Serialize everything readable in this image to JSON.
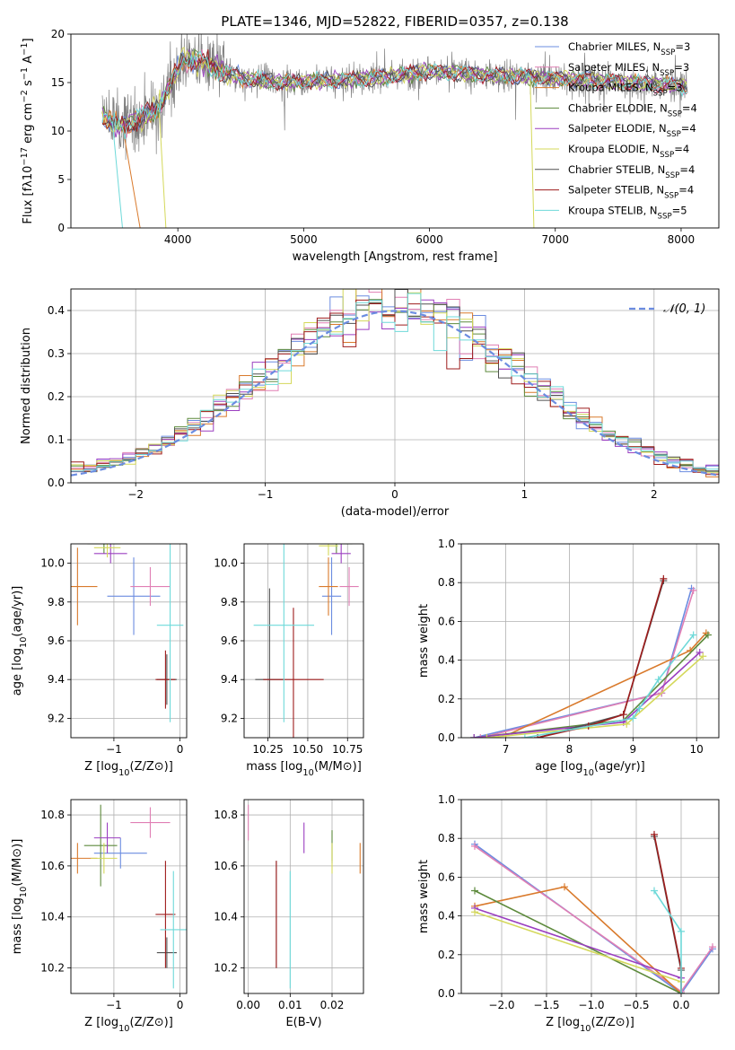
{
  "figure": {
    "title": "PLATE=1346, MJD=52822, FIBERID=0357, z=0.138"
  },
  "chart_data": [
    {
      "id": "spectrum",
      "type": "line",
      "xlabel": "wavelength [Angstrom, rest frame]",
      "ylabel": "Flux [fλ10⁻¹⁷ erg cm⁻² s⁻¹ A⁻¹]",
      "xlim": [
        3150,
        8300
      ],
      "ylim": [
        0,
        20
      ],
      "xticks": [
        4000,
        5000,
        6000,
        7000,
        8000
      ],
      "yticks": [
        0,
        5,
        10,
        15,
        20
      ],
      "grid": false,
      "legend_position": "top-right",
      "data_series": {
        "name": "",
        "color": "#808080",
        "x_range": [
          3400,
          8050
        ]
      },
      "series": [
        {
          "name": "Chabrier MILES, Nₛₛₚ=3",
          "color": "#6b8ce0"
        },
        {
          "name": "Salpeter MILES, Nₛₛₚ=3",
          "color": "#e07fb4"
        },
        {
          "name": "Kroupa MILES, Nₛₛₚ=3",
          "color": "#d97a2c"
        },
        {
          "name": "Chabrier ELODIE, Nₛₛₚ=4",
          "color": "#5d8a3c"
        },
        {
          "name": "Salpeter ELODIE, Nₛₛₚ=4",
          "color": "#9b3fc0"
        },
        {
          "name": "Kroupa ELODIE, Nₛₛₚ=4",
          "color": "#d4d85a"
        },
        {
          "name": "Chabrier STELIB, Nₛₛₚ=4",
          "color": "#505050"
        },
        {
          "name": "Salpeter STELIB, Nₛₛₚ=4",
          "color": "#9e1c1c"
        },
        {
          "name": "Kroupa STELIB, Nₛₛₚ=5",
          "color": "#6ed9d9"
        }
      ],
      "continuum_knots": {
        "x": [
          3400,
          3550,
          3700,
          3850,
          3950,
          4050,
          4200,
          4500,
          4800,
          5200,
          5600,
          6000,
          6400,
          6800,
          7200,
          7600,
          8050
        ],
        "y": [
          11.5,
          10.5,
          11.3,
          12.5,
          15.0,
          17.5,
          17.0,
          15.5,
          15.0,
          15.2,
          15.5,
          16.2,
          15.8,
          15.6,
          15.3,
          15.0,
          14.6
        ]
      }
    },
    {
      "id": "residuals",
      "type": "histogram",
      "xlabel": "(data-model)/error",
      "ylabel": "Normed distribution",
      "xlim": [
        -2.5,
        2.5
      ],
      "ylim": [
        0,
        0.45
      ],
      "xticks": [
        -2,
        -1,
        0,
        1,
        2
      ],
      "yticks": [
        0.0,
        0.1,
        0.2,
        0.3,
        0.4
      ],
      "grid": true,
      "legend": "𝒩(0, 1)",
      "legend_position": "top-right",
      "reference_curve": {
        "name": "𝒩(0, 1)",
        "mean": 0,
        "sigma": 1,
        "color": "#6b8ce0",
        "style": "dashed"
      },
      "bin_width": 0.1,
      "bins_from": -2.5,
      "bins_to": 2.5
    },
    {
      "id": "age-vs-Z",
      "type": "scatter",
      "xlabel": "Z [log₁₀(Z/Z⊙)]",
      "ylabel": "age  [log₁₀(age/yr)]",
      "xlim": [
        -1.65,
        0.1
      ],
      "ylim": [
        9.1,
        10.1
      ],
      "xticks": [
        -1,
        0
      ],
      "yticks": [
        9.2,
        9.4,
        9.6,
        9.8,
        10.0
      ],
      "grid": true,
      "points": [
        {
          "color": "#6b8ce0",
          "x": -0.7,
          "y": 9.83,
          "xerr": 0.4,
          "yerr": 0.2
        },
        {
          "color": "#e07fb4",
          "x": -0.45,
          "y": 9.88,
          "xerr": 0.3,
          "yerr": 0.1
        },
        {
          "color": "#d97a2c",
          "x": -1.55,
          "y": 9.88,
          "xerr": 0.3,
          "yerr": 0.2
        },
        {
          "color": "#5d8a3c",
          "x": -1.15,
          "y": 10.1,
          "xerr": 0.25,
          "yerr": 0.05
        },
        {
          "color": "#9b3fc0",
          "x": -1.05,
          "y": 10.05,
          "xerr": 0.25,
          "yerr": 0.05
        },
        {
          "color": "#d4d85a",
          "x": -1.1,
          "y": 10.08,
          "xerr": 0.2,
          "yerr": 0.05
        },
        {
          "color": "#505050",
          "x": -0.2,
          "y": 9.4,
          "xerr": 0.15,
          "yerr": 0.13
        },
        {
          "color": "#9e1c1c",
          "x": -0.22,
          "y": 9.4,
          "xerr": 0.15,
          "yerr": 0.15
        },
        {
          "color": "#6ed9d9",
          "x": -0.15,
          "y": 9.68,
          "xerr": 0.2,
          "yerr": 0.5
        }
      ]
    },
    {
      "id": "age-vs-mass",
      "type": "scatter",
      "xlabel": "mass [log₁₀(M/M⊙)]",
      "ylabel": "",
      "xlim": [
        10.1,
        10.85
      ],
      "ylim": [
        9.1,
        10.1
      ],
      "xticks": [
        10.25,
        10.5,
        10.75
      ],
      "yticks": [
        9.2,
        9.4,
        9.6,
        9.8,
        10.0
      ],
      "grid": true,
      "points": [
        {
          "color": "#6b8ce0",
          "x": 10.65,
          "y": 9.83,
          "xerr": 0.06,
          "yerr": 0.2
        },
        {
          "color": "#e07fb4",
          "x": 10.76,
          "y": 9.88,
          "xerr": 0.06,
          "yerr": 0.1
        },
        {
          "color": "#d97a2c",
          "x": 10.63,
          "y": 9.88,
          "xerr": 0.06,
          "yerr": 0.15
        },
        {
          "color": "#5d8a3c",
          "x": 10.68,
          "y": 10.1,
          "xerr": 0.1,
          "yerr": 0.05
        },
        {
          "color": "#9b3fc0",
          "x": 10.71,
          "y": 10.05,
          "xerr": 0.06,
          "yerr": 0.05
        },
        {
          "color": "#d4d85a",
          "x": 10.63,
          "y": 10.09,
          "xerr": 0.06,
          "yerr": 0.05
        },
        {
          "color": "#505050",
          "x": 10.26,
          "y": 9.4,
          "xerr": 0.09,
          "yerr": 0.47
        },
        {
          "color": "#9e1c1c",
          "x": 10.41,
          "y": 9.4,
          "xerr": 0.19,
          "yerr": 0.37
        },
        {
          "color": "#6ed9d9",
          "x": 10.35,
          "y": 9.68,
          "xerr": 0.19,
          "yerr": 0.5
        }
      ]
    },
    {
      "id": "weight-vs-age",
      "type": "line",
      "xlabel": "age  [log₁₀(age/yr)]",
      "ylabel": "mass weight",
      "xlim": [
        6.3,
        10.35
      ],
      "ylim": [
        0,
        1.0
      ],
      "xticks": [
        7,
        8,
        9,
        10
      ],
      "yticks": [
        0.0,
        0.2,
        0.4,
        0.6,
        0.8,
        1.0
      ],
      "grid": true,
      "series": [
        {
          "color": "#6b8ce0",
          "x": [
            6.5,
            9.45,
            9.92
          ],
          "y": [
            0.0,
            0.23,
            0.77
          ]
        },
        {
          "color": "#e07fb4",
          "x": [
            6.6,
            9.45,
            9.95
          ],
          "y": [
            0.0,
            0.23,
            0.76
          ]
        },
        {
          "color": "#d97a2c",
          "x": [
            7.0,
            9.9,
            10.15
          ],
          "y": [
            0.01,
            0.45,
            0.54
          ]
        },
        {
          "color": "#5d8a3c",
          "x": [
            6.5,
            8.85,
            10.18
          ],
          "y": [
            0.0,
            0.09,
            0.53
          ]
        },
        {
          "color": "#9b3fc0",
          "x": [
            6.5,
            8.85,
            10.05
          ],
          "y": [
            0.0,
            0.08,
            0.44
          ]
        },
        {
          "color": "#d4d85a",
          "x": [
            6.7,
            8.9,
            10.1
          ],
          "y": [
            0.0,
            0.07,
            0.42
          ]
        },
        {
          "color": "#505050",
          "x": [
            7.5,
            8.85,
            9.48
          ],
          "y": [
            0.0,
            0.12,
            0.81
          ]
        },
        {
          "color": "#9e1c1c",
          "x": [
            7.5,
            8.3,
            8.85,
            9.48
          ],
          "y": [
            0.0,
            0.06,
            0.12,
            0.82
          ]
        },
        {
          "color": "#6ed9d9",
          "x": [
            7.3,
            9.0,
            9.1,
            9.4,
            9.95
          ],
          "y": [
            0.0,
            0.1,
            0.15,
            0.3,
            0.53
          ]
        }
      ]
    },
    {
      "id": "mass-vs-Z",
      "type": "scatter",
      "xlabel": "Z [log₁₀(Z/Z⊙)]",
      "ylabel": "mass [log₁₀(M/M⊙)]",
      "xlim": [
        -1.65,
        0.1
      ],
      "ylim": [
        10.1,
        10.86
      ],
      "xticks": [
        -1,
        0
      ],
      "yticks": [
        10.2,
        10.4,
        10.6,
        10.8
      ],
      "grid": true,
      "points": [
        {
          "color": "#6b8ce0",
          "x": -0.9,
          "y": 10.65,
          "xerr": 0.4,
          "yerr": 0.06
        },
        {
          "color": "#e07fb4",
          "x": -0.45,
          "y": 10.77,
          "xerr": 0.3,
          "yerr": 0.06
        },
        {
          "color": "#d97a2c",
          "x": -1.55,
          "y": 10.63,
          "xerr": 0.3,
          "yerr": 0.06
        },
        {
          "color": "#5d8a3c",
          "x": -1.2,
          "y": 10.68,
          "xerr": 0.25,
          "yerr": 0.16
        },
        {
          "color": "#9b3fc0",
          "x": -1.1,
          "y": 10.71,
          "xerr": 0.2,
          "yerr": 0.06
        },
        {
          "color": "#d4d85a",
          "x": -1.15,
          "y": 10.63,
          "xerr": 0.2,
          "yerr": 0.06
        },
        {
          "color": "#505050",
          "x": -0.2,
          "y": 10.26,
          "xerr": 0.15,
          "yerr": 0.06
        },
        {
          "color": "#9e1c1c",
          "x": -0.22,
          "y": 10.41,
          "xerr": 0.15,
          "yerr": 0.21
        },
        {
          "color": "#6ed9d9",
          "x": -0.1,
          "y": 10.35,
          "xerr": 0.2,
          "yerr": 0.23
        }
      ]
    },
    {
      "id": "mass-vs-ebv",
      "type": "scatter",
      "xlabel": "E(B-V)",
      "ylabel": "",
      "xlim": [
        -0.001,
        0.0275
      ],
      "ylim": [
        10.1,
        10.86
      ],
      "xticks": [
        0.0,
        0.01,
        0.02
      ],
      "yticks": [
        10.2,
        10.4,
        10.6,
        10.8
      ],
      "grid": true,
      "points": [
        {
          "color": "#6b8ce0",
          "x": 0.02,
          "y": 10.65,
          "yerr": 0.04
        },
        {
          "color": "#e07fb4",
          "x": 0.0,
          "y": 10.77,
          "yerr": 0.07
        },
        {
          "color": "#d97a2c",
          "x": 0.0267,
          "y": 10.63,
          "yerr": 0.06
        },
        {
          "color": "#5d8a3c",
          "x": 0.02,
          "y": 10.68,
          "yerr": 0.06
        },
        {
          "color": "#9b3fc0",
          "x": 0.0133,
          "y": 10.71,
          "yerr": 0.06
        },
        {
          "color": "#d4d85a",
          "x": 0.02,
          "y": 10.63,
          "yerr": 0.06
        },
        {
          "color": "#505050",
          "x": 0.0067,
          "y": 10.41,
          "yerr": 0.21
        },
        {
          "color": "#9e1c1c",
          "x": 0.0067,
          "y": 10.41,
          "yerr": 0.21
        },
        {
          "color": "#6ed9d9",
          "x": 0.01,
          "y": 10.35,
          "yerr": 0.23
        }
      ]
    },
    {
      "id": "weight-vs-Z",
      "type": "line",
      "xlabel": "Z [log₁₀(Z/Z⊙)]",
      "ylabel": "mass weight",
      "xlim": [
        -2.45,
        0.42
      ],
      "ylim": [
        0,
        1.0
      ],
      "xticks": [
        -2.0,
        -1.5,
        -1.0,
        -0.5,
        0.0
      ],
      "yticks": [
        0.0,
        0.2,
        0.4,
        0.6,
        0.8,
        1.0
      ],
      "grid": true,
      "series": [
        {
          "color": "#6b8ce0",
          "x": [
            -2.3,
            0.0,
            0.35
          ],
          "y": [
            0.77,
            0.0,
            0.23
          ]
        },
        {
          "color": "#e07fb4",
          "x": [
            -2.3,
            0.0,
            0.35
          ],
          "y": [
            0.76,
            0.01,
            0.24
          ]
        },
        {
          "color": "#d97a2c",
          "x": [
            -2.3,
            -1.3,
            0.0
          ],
          "y": [
            0.45,
            0.55,
            0.0
          ]
        },
        {
          "color": "#5d8a3c",
          "x": [
            -2.3,
            0.0
          ],
          "y": [
            0.53,
            0.0
          ]
        },
        {
          "color": "#9b3fc0",
          "x": [
            -2.3,
            0.0
          ],
          "y": [
            0.44,
            0.08
          ]
        },
        {
          "color": "#d4d85a",
          "x": [
            -2.3,
            0.0
          ],
          "y": [
            0.42,
            0.06
          ]
        },
        {
          "color": "#505050",
          "x": [
            -0.3,
            0.0,
            0.0
          ],
          "y": [
            0.81,
            0.12,
            0.0
          ]
        },
        {
          "color": "#9e1c1c",
          "x": [
            -0.3,
            0.0,
            0.0
          ],
          "y": [
            0.82,
            0.13,
            0.0
          ]
        },
        {
          "color": "#6ed9d9",
          "x": [
            -0.3,
            0.0,
            0.0
          ],
          "y": [
            0.53,
            0.32,
            0.0
          ]
        }
      ]
    }
  ]
}
